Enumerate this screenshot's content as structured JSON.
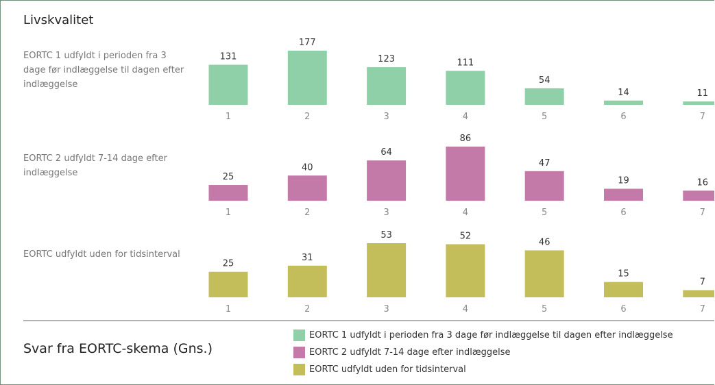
{
  "title": "Livskvalitet",
  "legend_title": "Svar fra EORTC-skema (Gns.)",
  "chart_data": [
    {
      "type": "bar",
      "categories": [
        "1",
        "2",
        "3",
        "4",
        "5",
        "6",
        "7"
      ],
      "series": [
        {
          "name": "EORTC 1 udfyldt i perioden fra 3 dage før indlæggelse til dagen efter indlæggelse",
          "color": "#8fd0a8",
          "values": [
            131,
            177,
            123,
            111,
            54,
            14,
            11
          ]
        }
      ]
    },
    {
      "type": "bar",
      "categories": [
        "1",
        "2",
        "3",
        "4",
        "5",
        "6",
        "7"
      ],
      "series": [
        {
          "name": "EORTC 2 udfyldt 7-14 dage efter indlæggelse",
          "color": "#c47aa8",
          "values": [
            25,
            40,
            64,
            86,
            47,
            19,
            16
          ]
        }
      ]
    },
    {
      "type": "bar",
      "categories": [
        "1",
        "2",
        "3",
        "4",
        "5",
        "6",
        "7"
      ],
      "series": [
        {
          "name": "EORTC udfyldt uden for tidsinterval",
          "color": "#c3bd5a",
          "values": [
            25,
            31,
            53,
            52,
            46,
            15,
            7
          ]
        }
      ]
    }
  ]
}
